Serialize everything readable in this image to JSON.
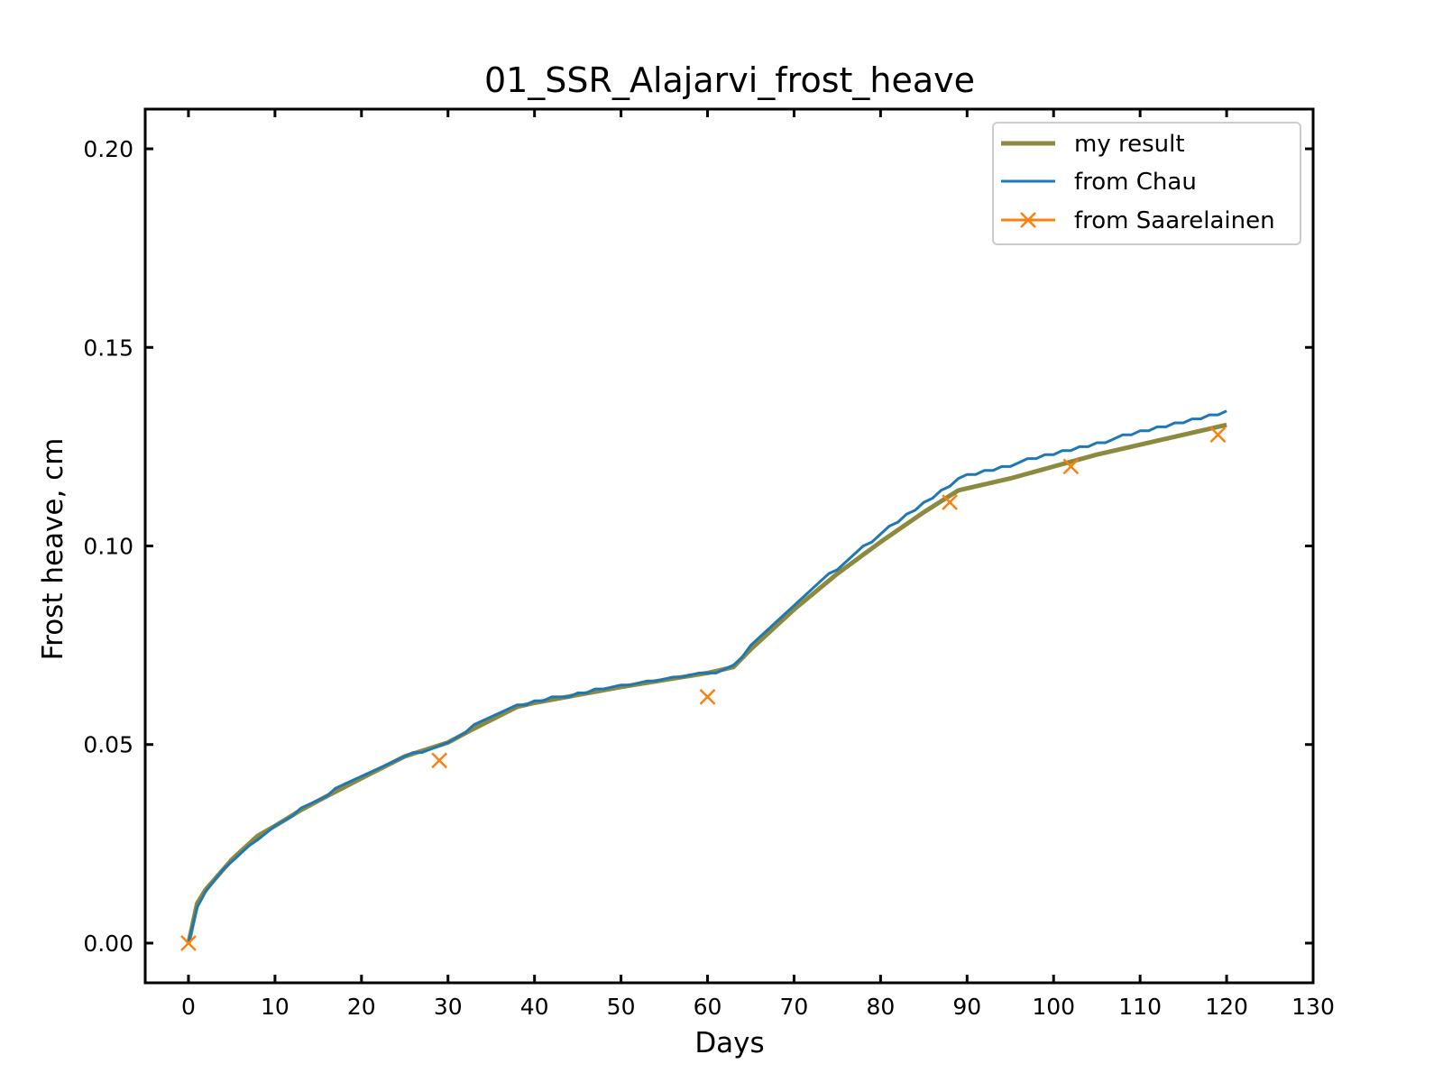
{
  "chart_data": {
    "type": "line",
    "title": "01_SSR_Alajarvi_frost_heave",
    "xlabel": "Days",
    "ylabel": "Frost heave, cm",
    "xlim": [
      -5,
      130
    ],
    "ylim": [
      -0.01,
      0.21
    ],
    "x_ticks": [
      0,
      10,
      20,
      30,
      40,
      50,
      60,
      70,
      80,
      90,
      100,
      110,
      120,
      130
    ],
    "y_ticks": [
      0.0,
      0.05,
      0.1,
      0.15,
      0.2
    ],
    "x_tick_labels": [
      "0",
      "10",
      "20",
      "30",
      "40",
      "50",
      "60",
      "70",
      "80",
      "90",
      "100",
      "110",
      "120",
      "130"
    ],
    "y_tick_labels": [
      "0.00",
      "0.05",
      "0.10",
      "0.15",
      "0.20"
    ],
    "grid": false,
    "legend_position": "top-right",
    "series": [
      {
        "name": "my result",
        "color": "#8c8a3e",
        "style": "line",
        "x": [
          0,
          1,
          2,
          3,
          4,
          5,
          6,
          7,
          8,
          10,
          13,
          16,
          20,
          25,
          30,
          33,
          38,
          40,
          50,
          60,
          63,
          65,
          70,
          75,
          80,
          85,
          89,
          95,
          100,
          105,
          110,
          115,
          120
        ],
        "y": [
          0.0,
          0.01,
          0.0135,
          0.016,
          0.0185,
          0.021,
          0.023,
          0.025,
          0.027,
          0.0295,
          0.0335,
          0.037,
          0.0415,
          0.047,
          0.0505,
          0.054,
          0.0595,
          0.0605,
          0.0645,
          0.068,
          0.0695,
          0.074,
          0.084,
          0.093,
          0.101,
          0.1085,
          0.114,
          0.117,
          0.12,
          0.123,
          0.1255,
          0.128,
          0.1305
        ]
      },
      {
        "name": "from Chau",
        "color": "#1f77b4",
        "style": "line",
        "x": [
          0,
          1,
          2,
          4,
          6,
          7,
          8,
          10,
          12,
          13,
          16,
          17,
          20,
          25,
          26,
          27,
          30,
          32,
          33,
          38,
          39,
          40,
          41,
          42,
          44,
          45,
          46,
          47,
          48,
          50,
          51,
          53,
          54,
          56,
          57,
          59,
          60,
          61,
          63,
          64,
          65,
          70,
          74,
          75,
          78,
          79,
          81,
          82,
          83,
          84,
          85,
          86,
          87,
          88,
          89,
          90,
          91,
          92,
          93,
          94,
          95,
          96,
          97,
          98,
          99,
          100,
          101,
          102,
          103,
          104,
          105,
          106,
          107,
          108,
          109,
          110,
          111,
          112,
          113,
          114,
          115,
          116,
          117,
          118,
          119,
          120
        ],
        "y": [
          0.0,
          0.009,
          0.013,
          0.0185,
          0.0225,
          0.0245,
          0.026,
          0.0295,
          0.032,
          0.034,
          0.037,
          0.039,
          0.042,
          0.047,
          0.048,
          0.048,
          0.0505,
          0.053,
          0.055,
          0.06,
          0.06,
          0.061,
          0.061,
          0.062,
          0.062,
          0.063,
          0.063,
          0.064,
          0.064,
          0.065,
          0.065,
          0.066,
          0.066,
          0.067,
          0.067,
          0.068,
          0.068,
          0.068,
          0.07,
          0.072,
          0.075,
          0.085,
          0.093,
          0.094,
          0.1,
          0.101,
          0.105,
          0.106,
          0.108,
          0.109,
          0.111,
          0.112,
          0.114,
          0.115,
          0.117,
          0.118,
          0.118,
          0.119,
          0.119,
          0.12,
          0.12,
          0.121,
          0.122,
          0.122,
          0.123,
          0.123,
          0.124,
          0.124,
          0.125,
          0.125,
          0.126,
          0.126,
          0.127,
          0.128,
          0.128,
          0.129,
          0.129,
          0.13,
          0.13,
          0.131,
          0.131,
          0.132,
          0.132,
          0.133,
          0.133,
          0.134
        ]
      },
      {
        "name": "from Saarelainen",
        "color": "#ff7f0e",
        "style": "markers",
        "marker": "x",
        "x": [
          0,
          29,
          60,
          88,
          102,
          119
        ],
        "y": [
          0.0,
          0.046,
          0.062,
          0.111,
          0.12,
          0.128
        ]
      }
    ]
  }
}
